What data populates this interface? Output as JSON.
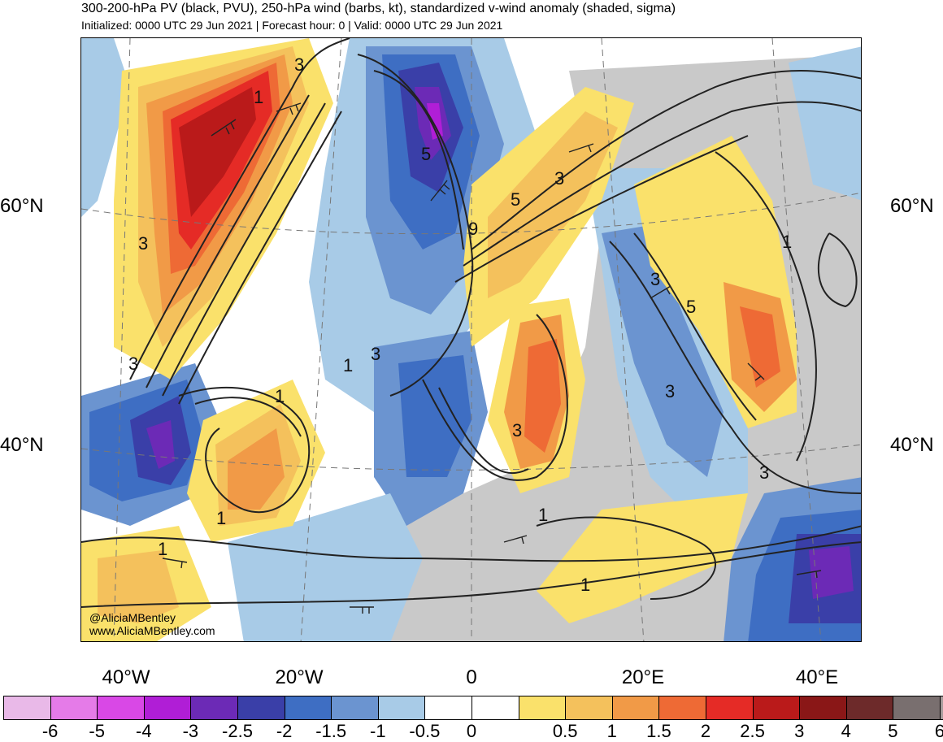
{
  "header": {
    "title": "300-200-hPa PV (black, PVU), 250-hPa wind (barbs, kt), standardized v-wind anomaly (shaded, sigma)",
    "subtitle": "Initialized: 0000 UTC 29 Jun 2021 | Forecast hour: 0 | Valid: 0000 UTC 29 Jun 2021"
  },
  "map": {
    "lat_labels": [
      "60°N",
      "40°N"
    ],
    "lon_labels": [
      "40°W",
      "20°W",
      "0",
      "20°E",
      "40°E"
    ],
    "contour_labels": [
      "3",
      "1",
      "5",
      "3",
      "9",
      "5",
      "3",
      "1",
      "3",
      "5",
      "3",
      "1",
      "3",
      "3",
      "1",
      "3",
      "1",
      "1",
      "3",
      "1",
      "1"
    ],
    "credit_handle": "@AliciaMBentley",
    "credit_url": "www.AliciaMBentley.com"
  },
  "colorbar": {
    "colors": [
      "#e9b9e8",
      "#e57be8",
      "#d948e6",
      "#b01ed6",
      "#6c2ab6",
      "#3a3fa8",
      "#3e6ec3",
      "#6b94d0",
      "#a8cbe7",
      "#ffffff",
      "#ffffff",
      "#fae16b",
      "#f4c15c",
      "#f19a47",
      "#ee6a35",
      "#e52b26",
      "#ba1a1a",
      "#8a1717",
      "#6d2a2a",
      "#796f6f",
      "#a79c9c"
    ],
    "labels": [
      "-6",
      "-5",
      "-4",
      "-3",
      "-2.5",
      "-2",
      "-1.5",
      "-1",
      "-0.5",
      "0",
      "0.5",
      "1",
      "1.5",
      "2",
      "2.5",
      "3",
      "4",
      "5",
      "6"
    ]
  }
}
